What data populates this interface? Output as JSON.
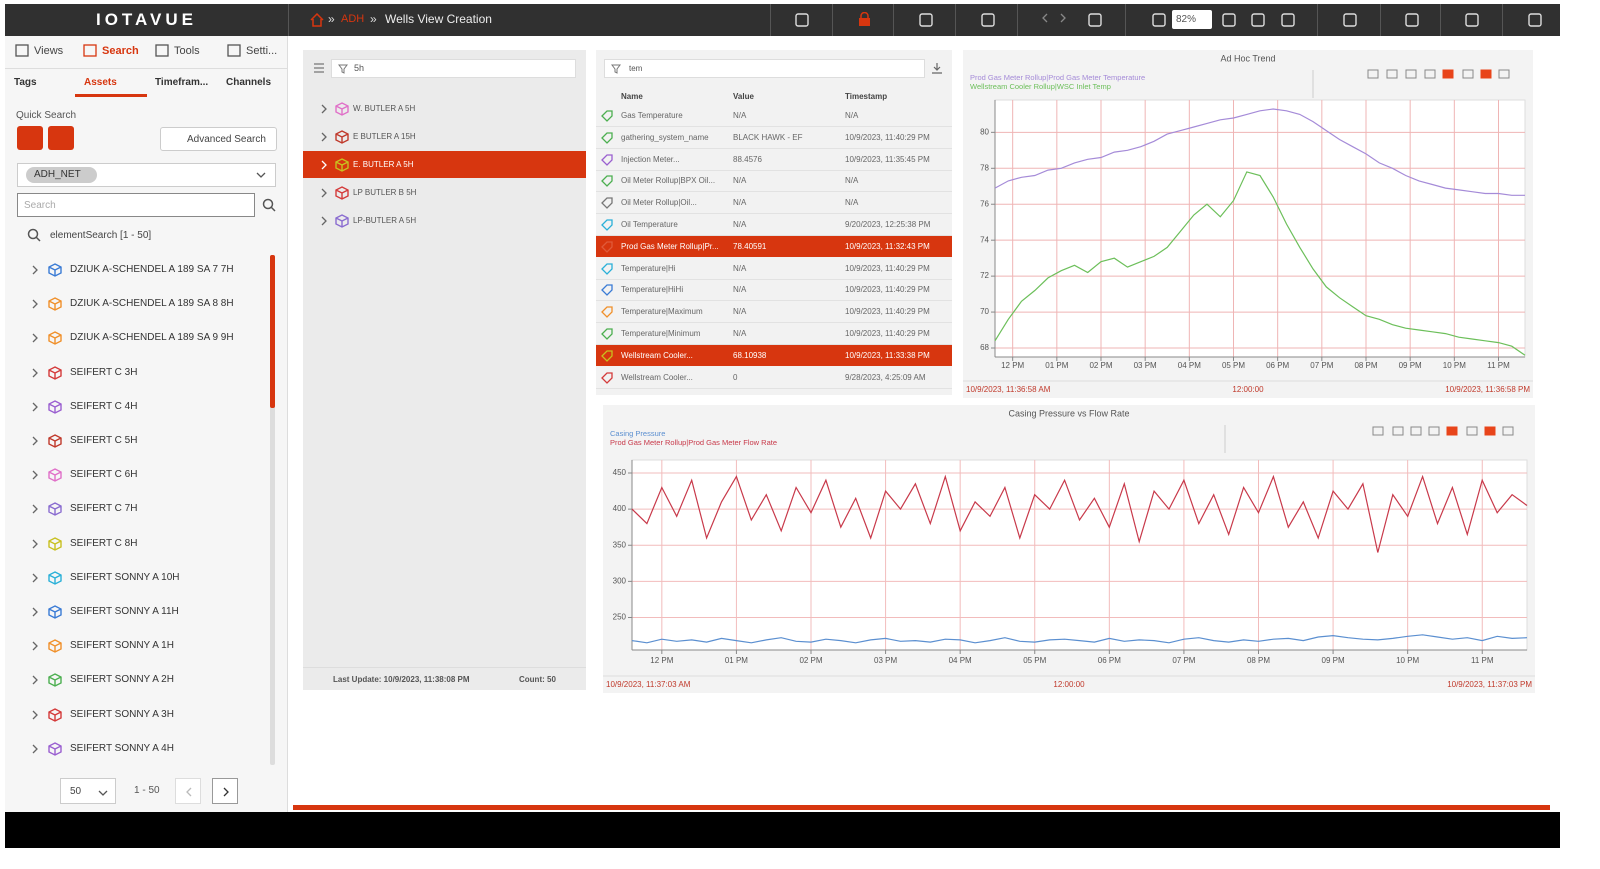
{
  "header": {
    "logo": "IOTAVUE",
    "breadcrumb": [
      "ADH",
      "Wells View Creation"
    ],
    "zoom": "82%"
  },
  "sidebar": {
    "tabs": [
      "Views",
      "Search",
      "Tools",
      "Setti..."
    ],
    "subtabs": [
      "Tags",
      "Assets",
      "Timefram...",
      "Channels"
    ],
    "quick_search": "Quick Search",
    "advanced_search": "Advanced Search",
    "chip": "ADH_NET",
    "search_placeholder": "Search",
    "result_label": "elementSearch [1 - 50]",
    "items": [
      {
        "label": "DZIUK A-SCHENDEL A 189 SA 7 7H",
        "icon_color": "#3a7bd5"
      },
      {
        "label": "DZIUK A-SCHENDEL A 189 SA 8 8H",
        "icon_color": "#f0902a"
      },
      {
        "label": "DZIUK A-SCHENDEL A 189 SA 9 9H",
        "icon_color": "#f0902a"
      },
      {
        "label": "SEIFERT C 3H",
        "icon_color": "#d43a3a"
      },
      {
        "label": "SEIFERT C 4H",
        "icon_color": "#9a5fd0"
      },
      {
        "label": "SEIFERT C 5H",
        "icon_color": "#c0392b"
      },
      {
        "label": "SEIFERT C 6H",
        "icon_color": "#e070c8"
      },
      {
        "label": "SEIFERT C 7H",
        "icon_color": "#8a6cd0"
      },
      {
        "label": "SEIFERT C 8H",
        "icon_color": "#c8c020"
      },
      {
        "label": "SEIFERT SONNY A 10H",
        "icon_color": "#2ab0d8"
      },
      {
        "label": "SEIFERT SONNY A 11H",
        "icon_color": "#3a7bd5"
      },
      {
        "label": "SEIFERT SONNY A 1H",
        "icon_color": "#f0902a"
      },
      {
        "label": "SEIFERT SONNY A 2H",
        "icon_color": "#4caf50"
      },
      {
        "label": "SEIFERT SONNY A 3H",
        "icon_color": "#d43a3a"
      },
      {
        "label": "SEIFERT SONNY A 4H",
        "icon_color": "#9a5fd0"
      }
    ],
    "page_size": "50",
    "page_range": "1 - 50"
  },
  "asset_panel": {
    "filter": "5h",
    "items": [
      {
        "label": "W. BUTLER A 5H",
        "icon_color": "#e070c8",
        "selected": false
      },
      {
        "label": "E BUTLER A 15H",
        "icon_color": "#c0392b",
        "selected": false
      },
      {
        "label": "E. BUTLER A 5H",
        "icon_color": "#c8c020",
        "selected": true
      },
      {
        "label": "LP BUTLER B 5H",
        "icon_color": "#d43a3a",
        "selected": false
      },
      {
        "label": "LP-BUTLER A 5H",
        "icon_color": "#8a6cd0",
        "selected": false
      }
    ],
    "last_update": "Last Update: 10/9/2023, 11:38:08 PM",
    "count": "Count: 50"
  },
  "tag_table": {
    "filter": "tem",
    "columns": [
      "Name",
      "Value",
      "Timestamp"
    ],
    "rows": [
      {
        "cells": [
          "Gas Temperature",
          "N/A",
          "N/A"
        ],
        "icon_color": "#4caf50",
        "selected": false
      },
      {
        "cells": [
          "gathering_system_name",
          "BLACK HAWK - EF",
          "10/9/2023, 11:40:29 PM"
        ],
        "icon_color": "#4caf50",
        "selected": false
      },
      {
        "cells": [
          "Injection Meter...",
          "88.4576",
          "10/9/2023, 11:35:45 PM"
        ],
        "icon_color": "#9a5fd0",
        "selected": false
      },
      {
        "cells": [
          "Oil Meter Rollup|BPX Oil...",
          "N/A",
          "N/A"
        ],
        "icon_color": "#4caf50",
        "selected": false
      },
      {
        "cells": [
          "Oil Meter Rollup|Oil...",
          "N/A",
          "N/A"
        ],
        "icon_color": "#777777",
        "selected": false
      },
      {
        "cells": [
          "Oil Temperature",
          "N/A",
          "9/20/2023, 12:25:38 PM"
        ],
        "icon_color": "#2ab0d8",
        "selected": false
      },
      {
        "cells": [
          "Prod Gas Meter Rollup|Pr...",
          "78.40591",
          "10/9/2023, 11:32:43 PM"
        ],
        "icon_color": "#e05a3a",
        "selected": true
      },
      {
        "cells": [
          "Temperature|Hi",
          "N/A",
          "10/9/2023, 11:40:29 PM"
        ],
        "icon_color": "#2ab0d8",
        "selected": false
      },
      {
        "cells": [
          "Temperature|HiHi",
          "N/A",
          "10/9/2023, 11:40:29 PM"
        ],
        "icon_color": "#3a7bd5",
        "selected": false
      },
      {
        "cells": [
          "Temperature|Maximum",
          "N/A",
          "10/9/2023, 11:40:29 PM"
        ],
        "icon_color": "#f0902a",
        "selected": false
      },
      {
        "cells": [
          "Temperature|Minimum",
          "N/A",
          "10/9/2023, 11:40:29 PM"
        ],
        "icon_color": "#4caf50",
        "selected": false
      },
      {
        "cells": [
          "Wellstream Cooler...",
          "68.10938",
          "10/9/2023, 11:33:38 PM"
        ],
        "icon_color": "#c8c020",
        "selected": true
      },
      {
        "cells": [
          "Wellstream Cooler...",
          "0",
          "9/28/2023, 4:25:09 AM"
        ],
        "icon_color": "#d43a3a",
        "selected": false
      }
    ]
  },
  "chart_data": [
    {
      "type": "line",
      "title": "Ad Hoc Trend",
      "grid": true,
      "x": [
        11.6,
        11.9,
        12.2,
        12.5,
        12.8,
        13.1,
        13.4,
        13.7,
        14.0,
        14.3,
        14.6,
        14.9,
        15.2,
        15.5,
        15.8,
        16.1,
        16.4,
        16.7,
        17.0,
        17.3,
        17.6,
        17.9,
        18.2,
        18.5,
        18.8,
        19.1,
        19.4,
        19.7,
        20.0,
        20.3,
        20.6,
        20.9,
        21.2,
        21.5,
        21.8,
        22.1,
        22.4,
        22.7,
        23.0,
        23.3,
        23.6
      ],
      "xlim": [
        11.6,
        23.6
      ],
      "xticks": [
        {
          "value": 12,
          "label": "12 PM"
        },
        {
          "value": 13,
          "label": "01 PM"
        },
        {
          "value": 14,
          "label": "02 PM"
        },
        {
          "value": 15,
          "label": "03 PM"
        },
        {
          "value": 16,
          "label": "04 PM"
        },
        {
          "value": 17,
          "label": "05 PM"
        },
        {
          "value": 18,
          "label": "06 PM"
        },
        {
          "value": 19,
          "label": "07 PM"
        },
        {
          "value": 20,
          "label": "08 PM"
        },
        {
          "value": 21,
          "label": "09 PM"
        },
        {
          "value": 22,
          "label": "10 PM"
        },
        {
          "value": 23,
          "label": "11 PM"
        }
      ],
      "ylim": [
        67.5,
        81.8
      ],
      "yticks": [
        68,
        70,
        72,
        74,
        76,
        78,
        80
      ],
      "series": [
        {
          "name": "Prod Gas Meter Rollup|Prod Gas Meter Temperature",
          "color": "#a58bd8",
          "values": [
            76.9,
            77.3,
            77.5,
            77.6,
            77.9,
            78.0,
            78.3,
            78.5,
            78.6,
            78.9,
            79.0,
            79.2,
            79.5,
            79.9,
            80.1,
            80.3,
            80.5,
            80.7,
            80.8,
            81.0,
            81.2,
            81.3,
            81.2,
            81.0,
            80.6,
            80.1,
            79.6,
            79.2,
            78.8,
            78.3,
            78.0,
            77.6,
            77.3,
            77.1,
            76.9,
            76.8,
            76.7,
            76.6,
            76.6,
            76.5,
            76.5
          ]
        },
        {
          "name": "Wellstream Cooler Rollup|WSC Inlet Temp",
          "color": "#6cbf5a",
          "values": [
            68.4,
            69.6,
            70.6,
            71.2,
            71.9,
            72.3,
            72.6,
            72.2,
            72.8,
            73.0,
            72.5,
            72.8,
            73.1,
            73.6,
            74.5,
            75.4,
            76.0,
            75.3,
            76.2,
            77.8,
            77.6,
            76.4,
            74.9,
            73.6,
            72.4,
            71.4,
            70.8,
            70.3,
            69.8,
            69.6,
            69.3,
            69.1,
            69.0,
            68.9,
            68.8,
            68.6,
            68.5,
            68.4,
            68.3,
            68.1,
            67.6
          ]
        }
      ],
      "footer": [
        "10/9/2023, 11:36:58 AM",
        "12:00:00",
        "10/9/2023, 11:36:58 PM"
      ]
    },
    {
      "type": "line",
      "title": "Casing Pressure vs Flow Rate",
      "grid": true,
      "x": [
        11.6,
        11.8,
        12.0,
        12.2,
        12.4,
        12.6,
        12.8,
        13.0,
        13.2,
        13.4,
        13.6,
        13.8,
        14.0,
        14.2,
        14.4,
        14.6,
        14.8,
        15.0,
        15.2,
        15.4,
        15.6,
        15.8,
        16.0,
        16.2,
        16.4,
        16.6,
        16.8,
        17.0,
        17.2,
        17.4,
        17.6,
        17.8,
        18.0,
        18.2,
        18.4,
        18.6,
        18.8,
        19.0,
        19.2,
        19.4,
        19.6,
        19.8,
        20.0,
        20.2,
        20.4,
        20.6,
        20.8,
        21.0,
        21.2,
        21.4,
        21.6,
        21.8,
        22.0,
        22.2,
        22.4,
        22.6,
        22.8,
        23.0,
        23.2,
        23.4,
        23.6
      ],
      "xlim": [
        11.6,
        23.6
      ],
      "xticks": [
        {
          "value": 12,
          "label": "12 PM"
        },
        {
          "value": 13,
          "label": "01 PM"
        },
        {
          "value": 14,
          "label": "02 PM"
        },
        {
          "value": 15,
          "label": "03 PM"
        },
        {
          "value": 16,
          "label": "04 PM"
        },
        {
          "value": 17,
          "label": "05 PM"
        },
        {
          "value": 18,
          "label": "06 PM"
        },
        {
          "value": 19,
          "label": "07 PM"
        },
        {
          "value": 20,
          "label": "08 PM"
        },
        {
          "value": 21,
          "label": "09 PM"
        },
        {
          "value": 22,
          "label": "10 PM"
        },
        {
          "value": 23,
          "label": "11 PM"
        }
      ],
      "ylim": [
        205,
        468
      ],
      "yticks": [
        250,
        300,
        350,
        400,
        450
      ],
      "series": [
        {
          "name": "Casing Pressure",
          "color": "#5b8fd0",
          "values": [
            218,
            215,
            220,
            217,
            219,
            216,
            221,
            218,
            215,
            219,
            222,
            217,
            216,
            220,
            218,
            215,
            219,
            221,
            217,
            218,
            216,
            220,
            219,
            215,
            218,
            222,
            217,
            216,
            219,
            220,
            218,
            216,
            221,
            217,
            219,
            218,
            215,
            220,
            222,
            218,
            216,
            219,
            217,
            220,
            221,
            218,
            223,
            225,
            222,
            220,
            219,
            221,
            224,
            226,
            223,
            220,
            222,
            218,
            224,
            221,
            222
          ]
        },
        {
          "name": "Prod Gas Meter Rollup|Prod Gas Meter Flow Rate",
          "color": "#c8394a",
          "values": [
            400,
            380,
            430,
            390,
            440,
            360,
            410,
            445,
            385,
            420,
            370,
            430,
            395,
            440,
            375,
            415,
            360,
            425,
            400,
            435,
            380,
            445,
            370,
            410,
            390,
            430,
            360,
            420,
            400,
            440,
            385,
            415,
            375,
            435,
            355,
            425,
            400,
            440,
            380,
            420,
            365,
            430,
            395,
            445,
            375,
            410,
            360,
            425,
            400,
            435,
            340,
            420,
            390,
            445,
            380,
            430,
            365,
            440,
            395,
            420,
            405
          ]
        }
      ],
      "footer": [
        "10/9/2023, 11:37:03 AM",
        "12:00:00",
        "10/9/2023, 11:37:03 PM"
      ]
    }
  ]
}
